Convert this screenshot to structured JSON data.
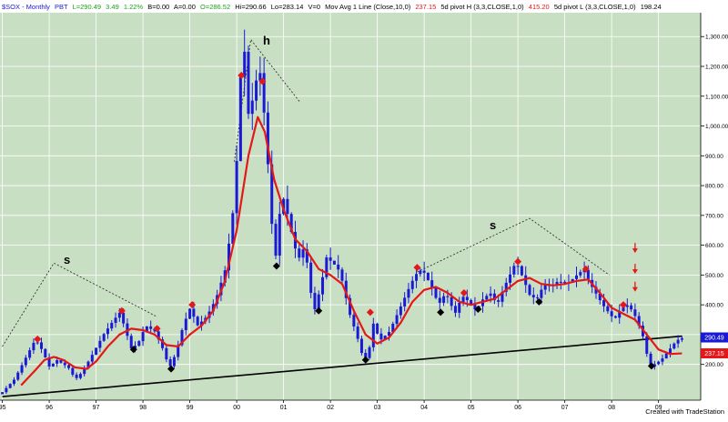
{
  "header": {
    "symbol": "$SOX - Monthly",
    "exchange": "PBT",
    "last": "L=290.49",
    "change": "3.49",
    "change_pct": "1.22%",
    "bid": "B=0.00",
    "ask": "A=0.00",
    "open": "O=286.52",
    "high": "Hi=290.66",
    "low": "Lo=283.14",
    "volume": "V=0",
    "study1": "Mov Avg 1 Line (Close,10,0)",
    "study1_value": "237.15",
    "study2": "5d pivot H (3,3,CLOSE,1,0)",
    "study2_value": "415.20",
    "study3": "5d pivot L (3,3,CLOSE,1,0)",
    "study3_value": "198.24"
  },
  "annotations": {
    "s_left": "s",
    "h_label": "h",
    "s_right": "s"
  },
  "price_tags": {
    "last": "290.49",
    "ma": "237.15"
  },
  "footer": {
    "credit": "Created with TradeStation"
  },
  "colors": {
    "background": "#c9dfc3",
    "grid": "#ffffff",
    "bars": "#1a1ad6",
    "moving_average": "#e41818",
    "trendline": "#000000",
    "pivot_high": "#e41818",
    "pivot_low": "#000000",
    "arrows": "#e41818"
  },
  "chart_data": {
    "type": "bar",
    "title": "$SOX - Monthly",
    "xlabel": "",
    "ylabel": "",
    "x_ticks": [
      "95",
      "96",
      "97",
      "98",
      "99",
      "00",
      "01",
      "02",
      "03",
      "04",
      "05",
      "06",
      "07",
      "08",
      "09"
    ],
    "y_ticks": [
      200,
      300,
      400,
      500,
      600,
      700,
      800,
      900,
      1000,
      1100,
      1200,
      1300
    ],
    "y_tick_labels": [
      "200.00",
      "300.00",
      "400.00",
      "500.00",
      "600.00",
      "700.00",
      "800.00",
      "900.00",
      "1,000.00",
      "1,100.00",
      "1,200.00",
      "1,300.00"
    ],
    "ylim": [
      80,
      1380
    ],
    "xlim": [
      1994.95,
      2009.9
    ],
    "grid": true,
    "series": [
      {
        "name": "$SOX",
        "style": "monthly-bars",
        "anchors": [
          [
            1995.0,
            100
          ],
          [
            1995.3,
            150
          ],
          [
            1995.6,
            240
          ],
          [
            1995.75,
            285
          ],
          [
            1995.9,
            245
          ],
          [
            1996.05,
            190
          ],
          [
            1996.2,
            215
          ],
          [
            1996.45,
            190
          ],
          [
            1996.6,
            150
          ],
          [
            1996.75,
            175
          ],
          [
            1996.95,
            230
          ],
          [
            1997.2,
            300
          ],
          [
            1997.4,
            345
          ],
          [
            1997.55,
            375
          ],
          [
            1997.7,
            300
          ],
          [
            1997.8,
            250
          ],
          [
            1997.95,
            275
          ],
          [
            1998.1,
            330
          ],
          [
            1998.3,
            310
          ],
          [
            1998.5,
            240
          ],
          [
            1998.6,
            185
          ],
          [
            1998.75,
            240
          ],
          [
            1998.9,
            330
          ],
          [
            1999.05,
            390
          ],
          [
            1999.2,
            330
          ],
          [
            1999.4,
            360
          ],
          [
            1999.6,
            420
          ],
          [
            1999.8,
            520
          ],
          [
            1999.95,
            690
          ],
          [
            2000.05,
            900
          ],
          [
            2000.12,
            1150
          ],
          [
            2000.18,
            1320
          ],
          [
            2000.3,
            1020
          ],
          [
            2000.45,
            1150
          ],
          [
            2000.55,
            1180
          ],
          [
            2000.65,
            1000
          ],
          [
            2000.75,
            780
          ],
          [
            2000.85,
            520
          ],
          [
            2000.95,
            700
          ],
          [
            2001.05,
            760
          ],
          [
            2001.2,
            650
          ],
          [
            2001.35,
            550
          ],
          [
            2001.5,
            600
          ],
          [
            2001.6,
            460
          ],
          [
            2001.7,
            380
          ],
          [
            2001.85,
            470
          ],
          [
            2001.95,
            560
          ],
          [
            2002.1,
            540
          ],
          [
            2002.25,
            510
          ],
          [
            2002.45,
            370
          ],
          [
            2002.6,
            300
          ],
          [
            2002.75,
            215
          ],
          [
            2002.85,
            230
          ],
          [
            2002.95,
            340
          ],
          [
            2003.1,
            280
          ],
          [
            2003.3,
            310
          ],
          [
            2003.5,
            380
          ],
          [
            2003.7,
            450
          ],
          [
            2003.85,
            500
          ],
          [
            2004.0,
            520
          ],
          [
            2004.2,
            460
          ],
          [
            2004.35,
            400
          ],
          [
            2004.5,
            440
          ],
          [
            2004.7,
            370
          ],
          [
            2004.85,
            430
          ],
          [
            2005.0,
            410
          ],
          [
            2005.15,
            380
          ],
          [
            2005.3,
            420
          ],
          [
            2005.45,
            440
          ],
          [
            2005.6,
            400
          ],
          [
            2005.75,
            460
          ],
          [
            2005.9,
            510
          ],
          [
            2006.0,
            545
          ],
          [
            2006.15,
            490
          ],
          [
            2006.3,
            430
          ],
          [
            2006.45,
            420
          ],
          [
            2006.6,
            470
          ],
          [
            2006.75,
            460
          ],
          [
            2006.9,
            480
          ],
          [
            2007.1,
            470
          ],
          [
            2007.3,
            500
          ],
          [
            2007.45,
            520
          ],
          [
            2007.55,
            480
          ],
          [
            2007.7,
            440
          ],
          [
            2007.85,
            400
          ],
          [
            2008.0,
            370
          ],
          [
            2008.1,
            350
          ],
          [
            2008.25,
            390
          ],
          [
            2008.4,
            400
          ],
          [
            2008.55,
            360
          ],
          [
            2008.7,
            300
          ],
          [
            2008.8,
            230
          ],
          [
            2008.85,
            190
          ],
          [
            2008.95,
            200
          ],
          [
            2009.1,
            215
          ],
          [
            2009.2,
            235
          ],
          [
            2009.3,
            255
          ],
          [
            2009.4,
            275
          ],
          [
            2009.5,
            288
          ]
        ]
      },
      {
        "name": "Mov Avg 1 Line (Close,10,0)",
        "style": "line",
        "points": [
          [
            1995.4,
            130
          ],
          [
            1995.7,
            180
          ],
          [
            1995.9,
            215
          ],
          [
            1996.1,
            225
          ],
          [
            1996.3,
            215
          ],
          [
            1996.55,
            190
          ],
          [
            1996.8,
            185
          ],
          [
            1997.0,
            210
          ],
          [
            1997.25,
            260
          ],
          [
            1997.5,
            300
          ],
          [
            1997.75,
            320
          ],
          [
            1998.0,
            315
          ],
          [
            1998.25,
            300
          ],
          [
            1998.5,
            265
          ],
          [
            1998.75,
            260
          ],
          [
            1999.0,
            300
          ],
          [
            1999.25,
            330
          ],
          [
            1999.5,
            380
          ],
          [
            1999.75,
            480
          ],
          [
            2000.0,
            650
          ],
          [
            2000.25,
            900
          ],
          [
            2000.45,
            1030
          ],
          [
            2000.6,
            980
          ],
          [
            2000.8,
            820
          ],
          [
            2001.0,
            720
          ],
          [
            2001.25,
            620
          ],
          [
            2001.5,
            580
          ],
          [
            2001.75,
            520
          ],
          [
            2002.0,
            500
          ],
          [
            2002.25,
            470
          ],
          [
            2002.5,
            380
          ],
          [
            2002.75,
            300
          ],
          [
            2003.0,
            270
          ],
          [
            2003.25,
            290
          ],
          [
            2003.5,
            340
          ],
          [
            2003.75,
            410
          ],
          [
            2004.0,
            450
          ],
          [
            2004.25,
            460
          ],
          [
            2004.5,
            440
          ],
          [
            2004.75,
            410
          ],
          [
            2005.0,
            400
          ],
          [
            2005.25,
            410
          ],
          [
            2005.5,
            420
          ],
          [
            2005.75,
            450
          ],
          [
            2006.0,
            480
          ],
          [
            2006.25,
            490
          ],
          [
            2006.5,
            470
          ],
          [
            2006.75,
            465
          ],
          [
            2007.0,
            470
          ],
          [
            2007.25,
            480
          ],
          [
            2007.5,
            485
          ],
          [
            2007.75,
            440
          ],
          [
            2008.0,
            390
          ],
          [
            2008.25,
            370
          ],
          [
            2008.5,
            350
          ],
          [
            2008.75,
            300
          ],
          [
            2009.0,
            250
          ],
          [
            2009.25,
            235
          ],
          [
            2009.5,
            237
          ]
        ]
      },
      {
        "name": "5d pivot H (3,3,CLOSE,1,0)",
        "style": "markers",
        "points": [
          [
            1995.75,
            285
          ],
          [
            1997.55,
            380
          ],
          [
            1998.3,
            320
          ],
          [
            1999.05,
            400
          ],
          [
            2000.1,
            1170
          ],
          [
            2000.55,
            1150
          ],
          [
            2002.85,
            375
          ],
          [
            2003.85,
            525
          ],
          [
            2004.85,
            440
          ],
          [
            2006.0,
            545
          ],
          [
            2007.45,
            520
          ],
          [
            2008.25,
            400
          ]
        ]
      },
      {
        "name": "5d pivot L (3,3,CLOSE,1,0)",
        "style": "markers",
        "points": [
          [
            1997.8,
            250
          ],
          [
            1998.6,
            185
          ],
          [
            2000.85,
            530
          ],
          [
            2001.75,
            380
          ],
          [
            2002.75,
            215
          ],
          [
            2004.35,
            375
          ],
          [
            2005.15,
            385
          ],
          [
            2006.45,
            410
          ],
          [
            2008.85,
            195
          ]
        ]
      },
      {
        "name": "trendline",
        "style": "line",
        "points": [
          [
            1995.0,
            92
          ],
          [
            2009.5,
            295
          ]
        ]
      }
    ],
    "guides": [
      {
        "name": "s_left_peak",
        "points": [
          [
            1995.0,
            260
          ],
          [
            1996.1,
            540
          ],
          [
            1998.3,
            360
          ]
        ]
      },
      {
        "name": "h_peak",
        "points": [
          [
            1999.95,
            880
          ],
          [
            2000.3,
            1290
          ],
          [
            2001.35,
            1080
          ]
        ]
      },
      {
        "name": "s_right_peak",
        "points": [
          [
            2003.85,
            510
          ],
          [
            2006.25,
            690
          ],
          [
            2007.95,
            500
          ]
        ]
      }
    ],
    "arrows": [
      [
        2008.5,
        580
      ],
      [
        2008.5,
        510
      ],
      [
        2008.5,
        450
      ]
    ]
  }
}
